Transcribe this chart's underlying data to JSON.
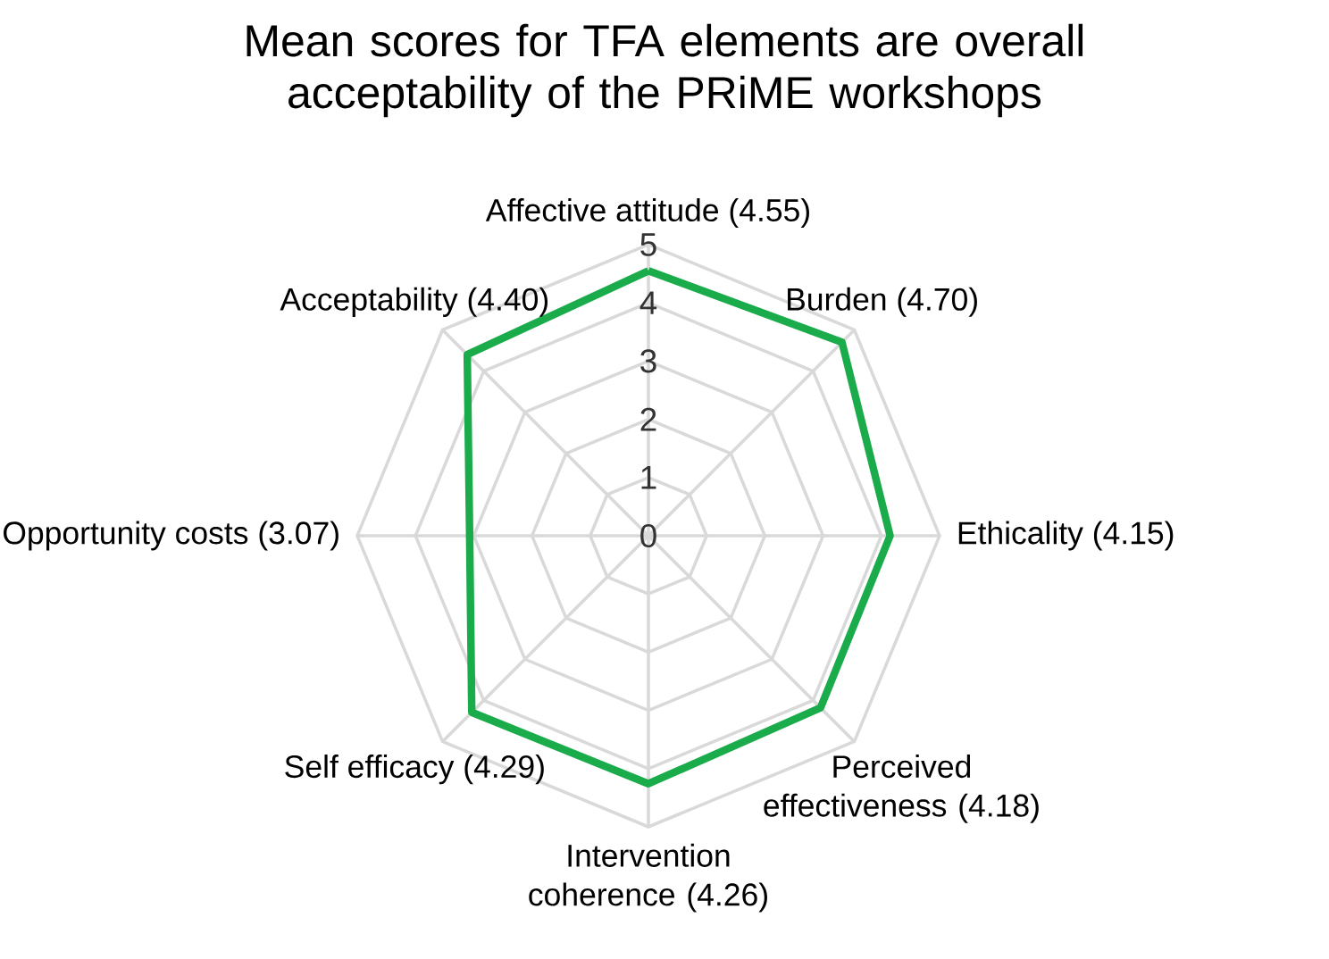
{
  "chart_data": {
    "type": "radar",
    "title": "Mean scores for TFA elements are overall acceptability of the PRiME workshops",
    "categories": [
      "Affective attitude (4.55)",
      "Burden (4.70)",
      "Ethicality (4.15)",
      "Perceived effectiveness (4.18)",
      "Intervention coherence (4.26)",
      "Self efficacy (4.29)",
      "Opportunity costs (3.07)",
      "Acceptability (4.40)"
    ],
    "series": [
      {
        "color": "#1aab4b",
        "values": [
          4.55,
          4.7,
          4.15,
          4.18,
          4.26,
          4.29,
          3.07,
          4.4
        ]
      }
    ],
    "ylim": [
      0,
      5
    ],
    "yticks": [
      0,
      1,
      2,
      3,
      4,
      5
    ],
    "grid": true,
    "marker": "none",
    "line_style": "solid"
  }
}
